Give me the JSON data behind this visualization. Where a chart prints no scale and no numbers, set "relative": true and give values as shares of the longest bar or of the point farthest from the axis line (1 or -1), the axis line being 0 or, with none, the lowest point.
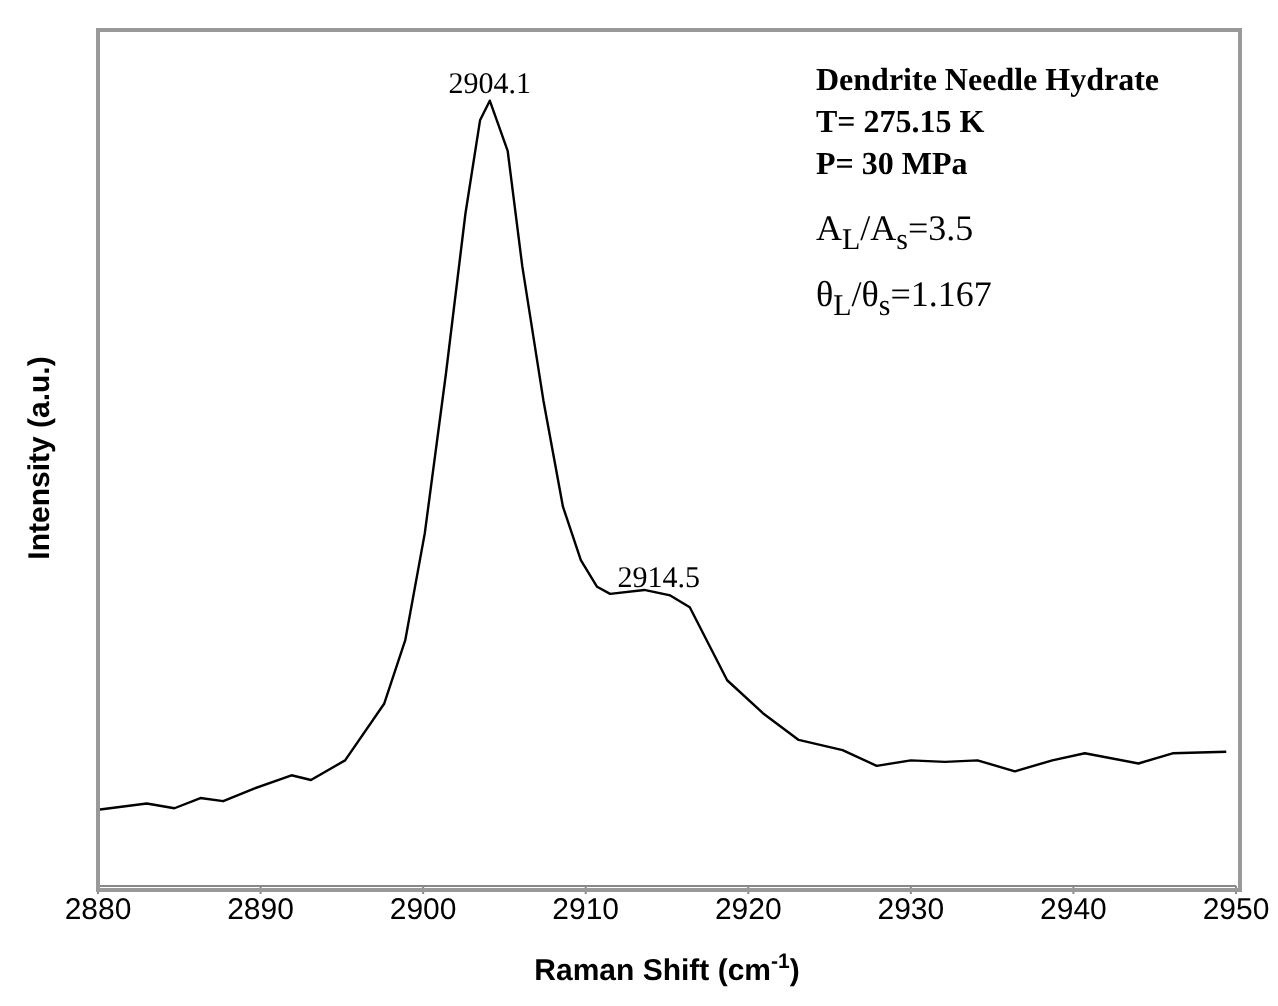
{
  "chart_data": {
    "type": "line",
    "relative": true,
    "xlabel": "Raman Shift (cm$^{-1}$)",
    "ylabel": "Intensity (a.u.)",
    "x": [
      2880,
      2883,
      2884.7,
      2886.3,
      2887.7,
      2889.6,
      2891.9,
      2893.1,
      2895.2,
      2897.6,
      2898.9,
      2900.1,
      2901.4,
      2902.6,
      2903.5,
      2904.1,
      2905.2,
      2906.1,
      2907.4,
      2908.6,
      2909.7,
      2910.7,
      2911.5,
      2913.6,
      2915.2,
      2916.4,
      2918.7,
      2920.9,
      2923.1,
      2925.8,
      2927.9,
      2930,
      2932.1,
      2934.1,
      2936.4,
      2938.7,
      2940.7,
      2944,
      2946.1,
      2949.4
    ],
    "series": [
      {
        "color": "#000000",
        "values": [
          0.097,
          0.105,
          0.099,
          0.112,
          0.108,
          0.124,
          0.141,
          0.135,
          0.16,
          0.232,
          0.313,
          0.449,
          0.652,
          0.856,
          0.975,
          1,
          0.936,
          0.789,
          0.618,
          0.483,
          0.415,
          0.381,
          0.372,
          0.377,
          0.37,
          0.355,
          0.262,
          0.22,
          0.186,
          0.173,
          0.153,
          0.16,
          0.158,
          0.16,
          0.146,
          0.16,
          0.169,
          0.156,
          0.169,
          0.171
        ]
      }
    ],
    "xlim": [
      2880,
      2950
    ],
    "xticks": [
      2880,
      2890,
      2900,
      2910,
      2920,
      2930,
      2940,
      2950
    ],
    "grid": false,
    "legend": false,
    "marker": "none",
    "line_style": "solid",
    "annotations": [
      {
        "text": "2904.1",
        "x": 2904.1,
        "y": 1
      },
      {
        "text": "2914.5",
        "x": 2914.5,
        "y": 0.37
      },
      "Dendrite Needle Hydrate",
      "T= 275.15 K",
      "P= 30 MPa",
      "A$_{L}$/A$_{s}$=3.5",
      "θ$_{L}$/θ$_{s}$=1.167"
    ]
  }
}
